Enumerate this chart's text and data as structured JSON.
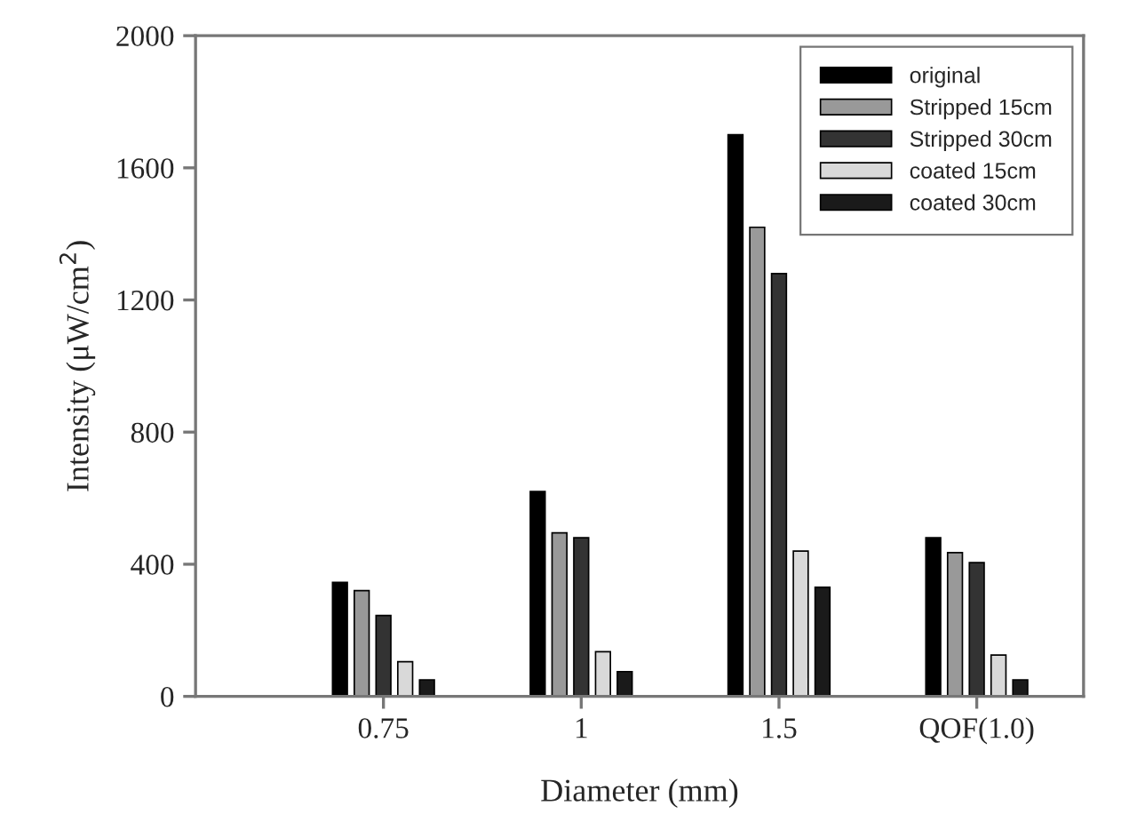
{
  "chart_data": {
    "type": "bar",
    "xlabel": "Diameter (mm)",
    "ylabel": "Intensity (μW/cm$^{2}$)",
    "categories": [
      "0.75",
      "1",
      "1.5",
      "QOF(1.0)"
    ],
    "series": [
      {
        "name": "original",
        "color": "#000000",
        "values": [
          345,
          620,
          1700,
          480
        ]
      },
      {
        "name": "Stripped 15cm",
        "color": "#999999",
        "values": [
          320,
          495,
          1420,
          435
        ]
      },
      {
        "name": "Stripped 30cm",
        "color": "#333333",
        "values": [
          245,
          480,
          1280,
          405
        ]
      },
      {
        "name": "coated 15cm",
        "color": "#d9d9d9",
        "values": [
          105,
          135,
          440,
          125
        ]
      },
      {
        "name": "coated 30cm",
        "color": "#1a1a1a",
        "values": [
          50,
          75,
          330,
          50
        ]
      }
    ],
    "ylim": [
      0,
      2000
    ],
    "yticks": [
      0,
      400,
      800,
      1200,
      1600,
      2000
    ],
    "grid": false,
    "legend": "top right"
  }
}
